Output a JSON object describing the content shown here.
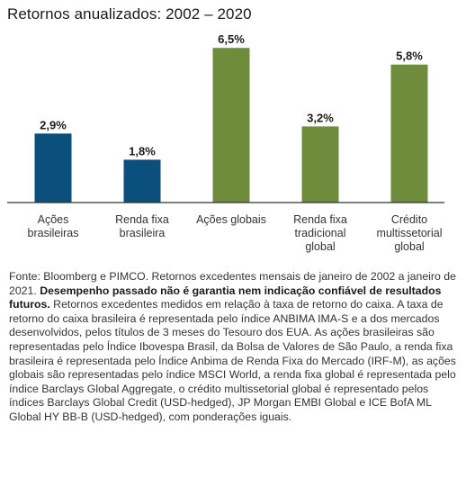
{
  "chart_data": {
    "type": "bar",
    "title": "Retornos anualizados: 2002 – 2020",
    "categories": [
      [
        "Ações",
        "brasileiras"
      ],
      [
        "Renda fixa",
        "brasileira"
      ],
      [
        "Ações globais"
      ],
      [
        "Renda fixa",
        "tradicional",
        "global"
      ],
      [
        "Crédito",
        "multissetorial",
        "global"
      ]
    ],
    "values": [
      2.9,
      1.8,
      6.5,
      3.2,
      5.8
    ],
    "value_labels": [
      "2,9%",
      "1,8%",
      "6,5%",
      "3,2%",
      "5,8%"
    ],
    "colors": [
      "#0b4f7c",
      "#0b4f7c",
      "#6e8c3c",
      "#6e8c3c",
      "#6e8c3c"
    ],
    "ylim": [
      0,
      7
    ],
    "grid": false,
    "xlabel": "",
    "ylabel": ""
  },
  "footnote": {
    "part1": "Fonte: Bloomberg e PIMCO. Retornos excedentes mensais de janeiro de 2002 a janeiro de 2021. ",
    "bold": "Desempenho passado não é garantia nem indicação confiável de resultados futuros.",
    "part2": " Retornos excedentes medidos em relação à taxa de retorno do caixa. A taxa de retorno do caixa brasileira é representada pelo índice ANBIMA IMA-S e a dos mercados desenvolvidos, pelos títulos de 3 meses do Tesouro dos EUA. As ações brasileiras são representadas pelo Índice Ibovespa Brasil, da Bolsa de Valores de São Paulo, a renda fixa brasileira é representada pelo Índice Anbima de Renda Fixa do Mercado (IRF-M), as ações globais são representadas pelo índice MSCI World, a renda fixa global é representada pelo índice Barclays Global Aggregate, o crédito multissetorial global é representado pelos índices Barclays Global Credit (USD-hedged), JP Morgan EMBI Global e ICE BofA ML Global HY BB-B (USD-hedged), com ponderações iguais."
  }
}
